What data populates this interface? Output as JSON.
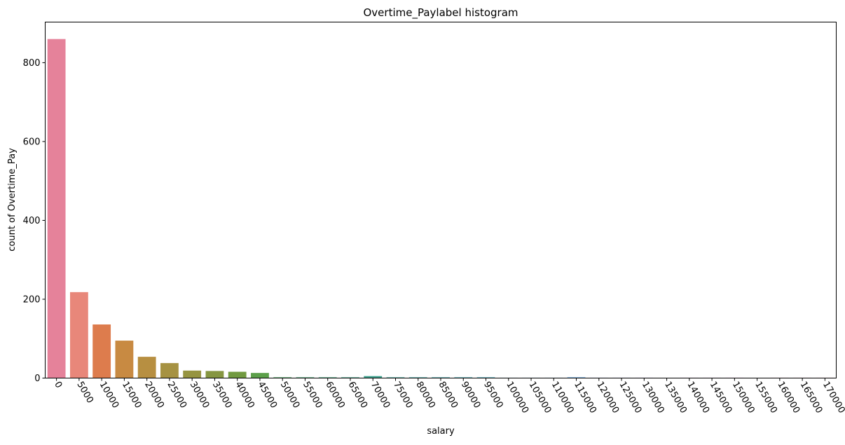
{
  "chart_data": {
    "type": "bar",
    "title": "Overtime_Paylabel histogram",
    "xlabel": "salary",
    "ylabel": "count of Overtime_Pay",
    "categories": [
      "0",
      "5000",
      "10000",
      "15000",
      "20000",
      "25000",
      "30000",
      "35000",
      "40000",
      "45000",
      "50000",
      "55000",
      "60000",
      "65000",
      "70000",
      "75000",
      "80000",
      "85000",
      "90000",
      "95000",
      "100000",
      "105000",
      "110000",
      "115000",
      "120000",
      "125000",
      "130000",
      "135000",
      "140000",
      "145000",
      "150000",
      "155000",
      "160000",
      "165000",
      "170000"
    ],
    "values": [
      860,
      218,
      136,
      95,
      54,
      38,
      19,
      18,
      16,
      13,
      2,
      2,
      2,
      2,
      5,
      2,
      2,
      2,
      2,
      2,
      1,
      1,
      1,
      2,
      1,
      1,
      1,
      0,
      1,
      1,
      1,
      0,
      1,
      1,
      1
    ],
    "ylim": [
      0,
      903
    ],
    "yticks": [
      0,
      200,
      400,
      600,
      800
    ],
    "xtick_rotation": "-60 degrees (slanted downward)",
    "grid": false,
    "legend": "none",
    "palette": [
      "#e5829a",
      "#e8877a",
      "#dd7c4d",
      "#c88a42",
      "#b78f41",
      "#a69242",
      "#969441",
      "#869641",
      "#729a41",
      "#5c9f4a",
      "#44a15d",
      "#42a06e",
      "#40a079",
      "#3fa084",
      "#3ea08d",
      "#3ea096",
      "#3ea09d",
      "#3fa0a4",
      "#3fa0ab",
      "#40a0b4",
      "#41a1bd",
      "#43a0c8",
      "#4aa0d5",
      "#5a9ddd",
      "#6f97e0",
      "#8a90e1",
      "#a08be0",
      "#b386de",
      "#c481dc",
      "#d47ad6",
      "#e075cb",
      "#e479bd",
      "#e67db1",
      "#e780a6",
      "#e5829a"
    ]
  }
}
